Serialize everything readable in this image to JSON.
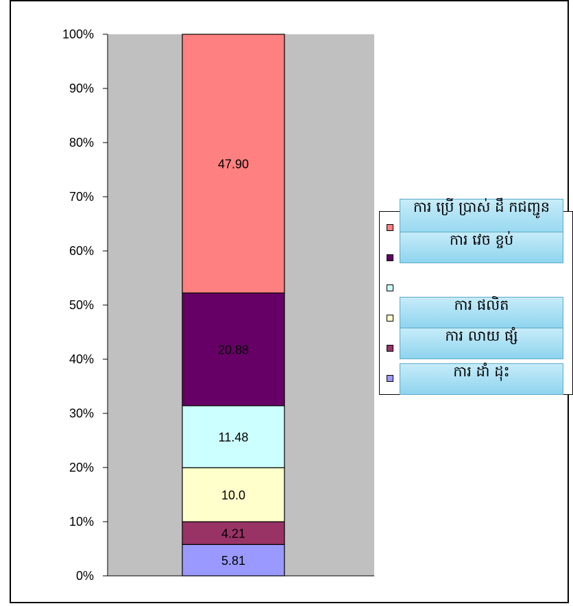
{
  "chart_data": {
    "type": "bar",
    "stacked": "percent",
    "categories": [
      ""
    ],
    "series": [
      {
        "name": "ការ ដាំដុះ",
        "values": [
          5.81
        ],
        "label": "5.81",
        "color": "#9999ff"
      },
      {
        "name": "ការ លាយ ផ្សំ",
        "values": [
          4.21
        ],
        "label": "4.21",
        "color": "#993366"
      },
      {
        "name": "ការ ផលិត",
        "values": [
          10.0
        ],
        "label": "10.0",
        "color": "#ffffcc"
      },
      {
        "name": "ការ វេចខ្ចប់",
        "values": [
          11.48
        ],
        "label": "11.48",
        "color": "#ccffff"
      },
      {
        "name": "",
        "values": [
          20.88
        ],
        "label": "20.88",
        "color": "#660066"
      },
      {
        "name": "ការ ប្រើប្រាស់ ដឹកជញ្ជូន",
        "values": [
          47.9
        ],
        "label": "47.90",
        "color": "#ff8080"
      }
    ],
    "ylim": [
      0,
      100
    ],
    "yticks": [
      "0%",
      "10%",
      "20%",
      "30%",
      "40%",
      "50%",
      "60%",
      "70%",
      "80%",
      "90%",
      "100%"
    ],
    "plot_background": "#c0c0c0",
    "legend_position": "right",
    "title": "",
    "xlabel": "",
    "ylabel": ""
  },
  "legend_labels": [
    "ការ ប្រើ ប្រាស់ ដឹ កជញ្ជូន",
    "ការ វេច ខ្ចប់",
    "ការ ផលិត",
    "ការ លាយ ផ្សំ",
    "ការ ដាំ ដុះ"
  ]
}
